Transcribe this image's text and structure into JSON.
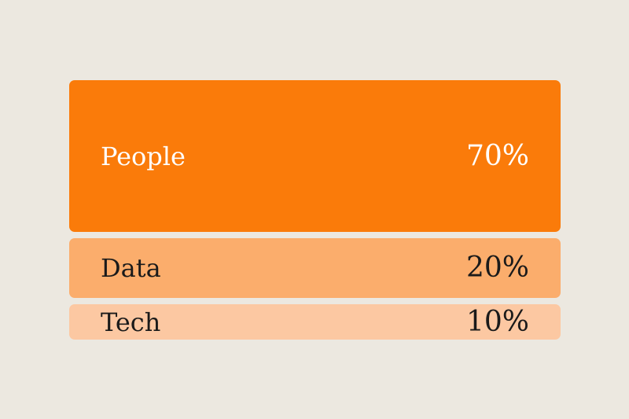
{
  "chart_data": {
    "type": "bar",
    "categories": [
      "People",
      "Data",
      "Tech"
    ],
    "values": [
      70,
      20,
      10
    ],
    "value_labels": [
      "70%",
      "20%",
      "10%"
    ],
    "unit": "%",
    "colors": [
      "#FA7B0A",
      "#FBAD6C",
      "#FCC8A2"
    ],
    "text_colors": [
      "#FFFFFF",
      "#1A1A1A",
      "#1A1A1A"
    ],
    "background": "#ECE8E0"
  }
}
